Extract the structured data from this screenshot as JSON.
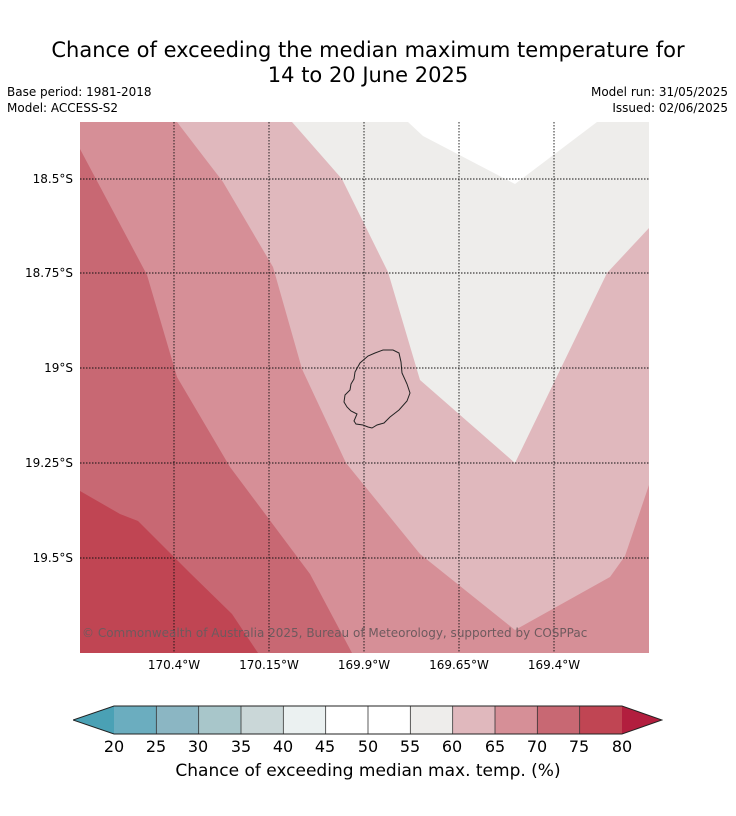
{
  "title_line1": "Chance of exceeding the median maximum temperature for",
  "title_line2": "14 to 20 June 2025",
  "meta": {
    "base_period": "Base period: 1981-2018",
    "model": "Model: ACCESS-S2",
    "model_run": "Model run: 31/05/2025",
    "issued": "Issued: 02/06/2025"
  },
  "map": {
    "lat_labels": [
      "18.5°S",
      "18.75°S",
      "19°S",
      "19.25°S",
      "19.5°S"
    ],
    "lon_labels": [
      "170.4°W",
      "170.15°W",
      "169.9°W",
      "169.65°W",
      "169.4°W"
    ],
    "copyright": "© Commonwealth of Australia 2025, Bureau of Meteorology, supported by COSPPac",
    "gridlines": "dotted"
  },
  "colorbar": {
    "ticks": [
      "20",
      "25",
      "30",
      "35",
      "40",
      "45",
      "50",
      "55",
      "60",
      "65",
      "70",
      "75",
      "80"
    ],
    "colors": [
      "#4aa1b5",
      "#6badbf",
      "#8bb6c3",
      "#a8c6ca",
      "#cad7d8",
      "#ebf1f1",
      "#ffffff",
      "#ffffff",
      "#eeedeb",
      "#e0b8bd",
      "#d68f97",
      "#c86873",
      "#c04553",
      "#b21e3e"
    ],
    "label": "Chance of exceeding median max. temp. (%)"
  }
}
